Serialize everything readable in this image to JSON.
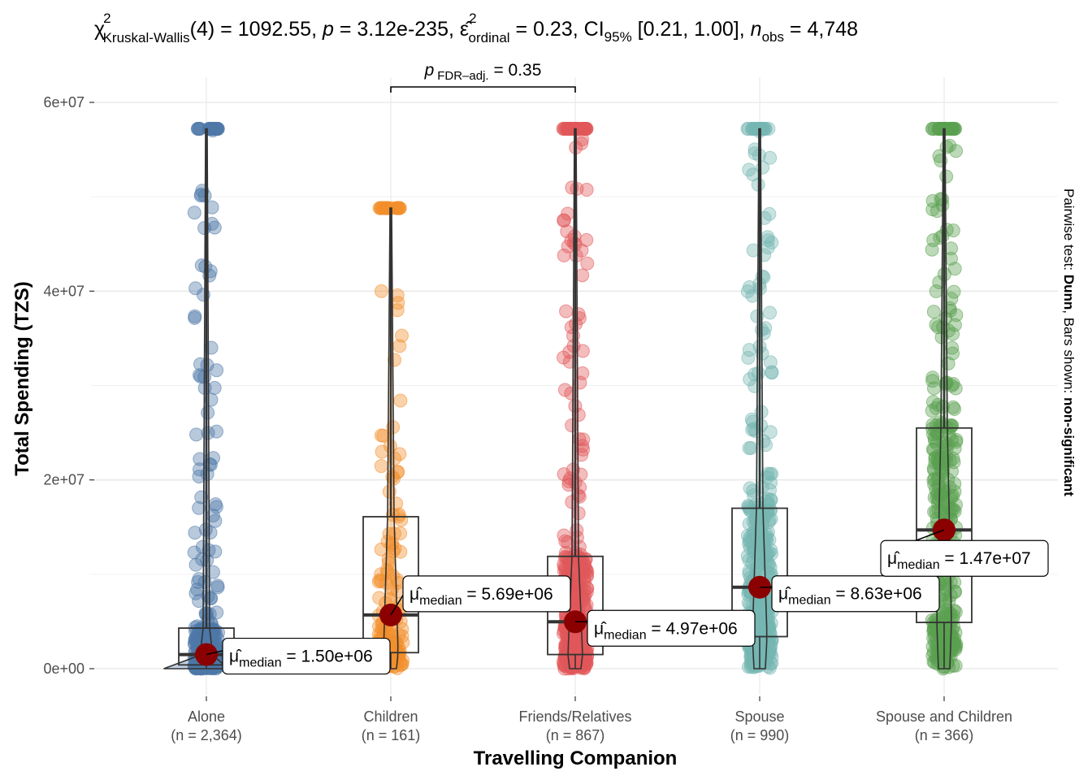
{
  "chart_data": {
    "type": "scatter",
    "subtype": "violin-box-jitter (ggbetweenstats)",
    "title": {
      "stat_symbol": "χ",
      "stat_sup": "2",
      "stat_sub": "Kruskal-Wallis",
      "df": "(4)",
      "statistic": "1092.55",
      "p_label": "p",
      "p_value": "3.12e-235",
      "effsize_symbol": "ε̂",
      "effsize_sup": "2",
      "effsize_sub": "ordinal",
      "effsize_value": "0.23",
      "ci_label": "CI",
      "ci_sub": "95%",
      "ci_value": "[0.21, 1.00]",
      "n_label": "n",
      "n_sub": "obs",
      "n_value": "4,748"
    },
    "xlabel": "Travelling Companion",
    "ylabel": "Total Spending (TZS)",
    "caption": {
      "prefix": "Pairwise test: ",
      "test": "Dunn",
      "middle": ", Bars shown: ",
      "shown": "non-significant"
    },
    "ylim": [
      -2000000,
      62000000
    ],
    "y_ticks": [
      {
        "value": 0,
        "label": "0e+00"
      },
      {
        "value": 20000000,
        "label": "2e+07"
      },
      {
        "value": 40000000,
        "label": "4e+07"
      },
      {
        "value": 60000000,
        "label": "6e+07"
      }
    ],
    "y_minor_grid": [
      10000000,
      30000000,
      50000000
    ],
    "grid": true,
    "categories": [
      "Alone",
      "Children",
      "Friends/Relatives",
      "Spouse",
      "Spouse and Children"
    ],
    "groups": [
      {
        "name": "Alone",
        "n_label": "(n = 2,364)",
        "n": 2364,
        "color": "#4E79A7",
        "q1": 400000,
        "median": 1500000,
        "q3": 4300000,
        "whisker_low": 0,
        "whisker_high": 57200000,
        "median_label": "1.50e+06"
      },
      {
        "name": "Children",
        "n_label": "(n = 161)",
        "n": 161,
        "color": "#F28E2B",
        "q1": 1700000,
        "median": 5690000,
        "q3": 16100000,
        "whisker_low": 0,
        "whisker_high": 48800000,
        "median_label": "5.69e+06"
      },
      {
        "name": "Friends/Relatives",
        "n_label": "(n = 867)",
        "n": 867,
        "color": "#E15759",
        "q1": 1500000,
        "median": 4970000,
        "q3": 11900000,
        "whisker_low": 0,
        "whisker_high": 57200000,
        "median_label": "4.97e+06"
      },
      {
        "name": "Spouse",
        "n_label": "(n = 990)",
        "n": 990,
        "color": "#76B7B2",
        "q1": 3400000,
        "median": 8630000,
        "q3": 17000000,
        "whisker_low": 0,
        "whisker_high": 57200000,
        "median_label": "8.63e+06"
      },
      {
        "name": "Spouse and Children",
        "n_label": "(n = 366)",
        "n": 366,
        "color": "#59A14F",
        "q1": 4900000,
        "median": 14700000,
        "q3": 25500000,
        "whisker_low": 0,
        "whisker_high": 57200000,
        "median_label": "1.47e+07"
      }
    ],
    "median_label_prefix": {
      "symbol": "μ̂",
      "sub": "median",
      "eq": "="
    },
    "median_point_color": "#8B0000",
    "pairwise": [
      {
        "from": "Children",
        "to": "Friends/Relatives",
        "label_p": "p",
        "label_sub": "FDR–adj.",
        "value": "0.35"
      }
    ]
  }
}
